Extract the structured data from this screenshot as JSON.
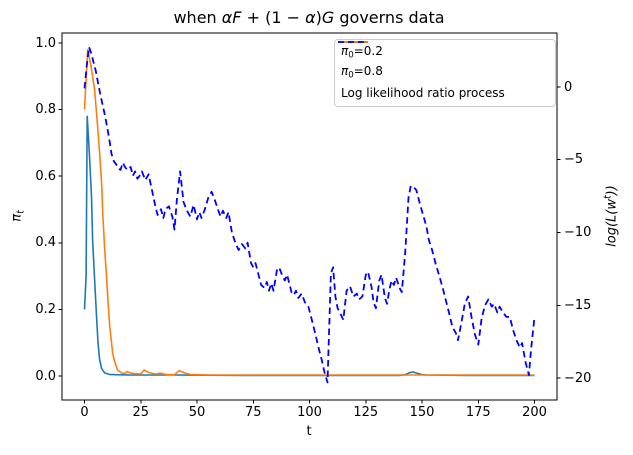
{
  "figure": {
    "title_parts": [
      {
        "text": "when ",
        "style": ""
      },
      {
        "text": "αF",
        "style": "i"
      },
      {
        "text": " + (1 − ",
        "style": ""
      },
      {
        "text": "α",
        "style": "i"
      },
      {
        "text": ")",
        "style": ""
      },
      {
        "text": "G",
        "style": "i"
      },
      {
        "text": " governs data",
        "style": ""
      }
    ],
    "xlabel": "t",
    "ylabel_left_parts": [
      {
        "text": "π",
        "style": "i"
      },
      {
        "text": "t",
        "style": "isub"
      }
    ],
    "ylabel_right_parts": [
      {
        "text": "log(L(w",
        "style": "i"
      },
      {
        "text": "t",
        "style": "isup"
      },
      {
        "text": "))",
        "style": "i"
      }
    ]
  },
  "chart_data": {
    "type": "line",
    "title": "when αF + (1 − α)G governs data",
    "xlabel": "t",
    "ylabel_left": "π_t",
    "ylabel_right": "log(L(w^t))",
    "grid": false,
    "xlim": [
      -10,
      210
    ],
    "ylim_left": [
      -0.072,
      1.03
    ],
    "ylim_right": [
      -21.51,
      3.71
    ],
    "xticks": {
      "values": [
        0,
        25,
        50,
        75,
        100,
        125,
        150,
        175,
        200
      ],
      "labels": [
        "0",
        "25",
        "50",
        "75",
        "100",
        "125",
        "150",
        "175",
        "200"
      ]
    },
    "yticks_left": {
      "values": [
        0.0,
        0.2,
        0.4,
        0.6,
        0.8,
        1.0
      ],
      "labels": [
        "0.0",
        "0.2",
        "0.4",
        "0.6",
        "0.8",
        "1.0"
      ]
    },
    "yticks_right": {
      "values": [
        0,
        -5,
        -10,
        -15,
        -20
      ],
      "labels": [
        "0",
        "−5",
        "−10",
        "−15",
        "−20"
      ]
    },
    "legend": {
      "position": "upper right",
      "entries": [
        {
          "label": "π₀=0.2",
          "label_parts": [
            {
              "text": "π",
              "style": "i"
            },
            {
              "text": "0",
              "style": "sub"
            },
            {
              "text": "=0.2",
              "style": ""
            }
          ],
          "color": "#1f77b4",
          "dash": false
        },
        {
          "label": "π₀=0.8",
          "label_parts": [
            {
              "text": "π",
              "style": "i"
            },
            {
              "text": "0",
              "style": "sub"
            },
            {
              "text": "=0.8",
              "style": ""
            }
          ],
          "color": "#ff7f0e",
          "dash": false
        },
        {
          "label": "Log likelihood ratio process",
          "label_parts": [
            {
              "text": "Log likelihood ratio process",
              "style": ""
            }
          ],
          "color": "#0000ff",
          "dash": true
        }
      ]
    },
    "series": [
      {
        "name": "pi0=0.2",
        "axis": "left",
        "color": "#1f77b4",
        "style": "solid",
        "width": 1.6,
        "points": [
          [
            0,
            0.2
          ],
          [
            0.7,
            0.3
          ],
          [
            1.2,
            0.78
          ],
          [
            2.2,
            0.66
          ],
          [
            3.1,
            0.54
          ],
          [
            3.6,
            0.41
          ],
          [
            4.5,
            0.29
          ],
          [
            5.4,
            0.17
          ],
          [
            6,
            0.1
          ],
          [
            6.7,
            0.05
          ],
          [
            7.6,
            0.022
          ],
          [
            9,
            0.009
          ],
          [
            11,
            0.005
          ],
          [
            14,
            0.004
          ],
          [
            20,
            0.003
          ],
          [
            40,
            0.003
          ],
          [
            70,
            0.002
          ],
          [
            100,
            0.002
          ],
          [
            140,
            0.002
          ],
          [
            142.5,
            0.004
          ],
          [
            144.5,
            0.01
          ],
          [
            146,
            0.012
          ],
          [
            148,
            0.008
          ],
          [
            150,
            0.004
          ],
          [
            152,
            0.003
          ],
          [
            170,
            0.002
          ],
          [
            200,
            0.002
          ]
        ]
      },
      {
        "name": "pi0=0.8",
        "axis": "left",
        "color": "#ff7f0e",
        "style": "solid",
        "width": 1.6,
        "points": [
          [
            0,
            0.8
          ],
          [
            1.4,
            0.98
          ],
          [
            2.9,
            0.93
          ],
          [
            4.5,
            0.86
          ],
          [
            5.8,
            0.75
          ],
          [
            6.7,
            0.67
          ],
          [
            7.6,
            0.58
          ],
          [
            8.2,
            0.48
          ],
          [
            8.9,
            0.39
          ],
          [
            9.8,
            0.3
          ],
          [
            10.5,
            0.22
          ],
          [
            11.2,
            0.15
          ],
          [
            12,
            0.1
          ],
          [
            12.5,
            0.07
          ],
          [
            13.4,
            0.042
          ],
          [
            14.7,
            0.018
          ],
          [
            16.5,
            0.009
          ],
          [
            17.9,
            0.008
          ],
          [
            19,
            0.014
          ],
          [
            20,
            0.01
          ],
          [
            21.5,
            0.008
          ],
          [
            23,
            0.007
          ],
          [
            25,
            0.006
          ],
          [
            26.5,
            0.018
          ],
          [
            28,
            0.012
          ],
          [
            30,
            0.008
          ],
          [
            32,
            0.006
          ],
          [
            33.5,
            0.009
          ],
          [
            35,
            0.006
          ],
          [
            37,
            0.004
          ],
          [
            40,
            0.004
          ],
          [
            42,
            0.016
          ],
          [
            43.5,
            0.012
          ],
          [
            45,
            0.008
          ],
          [
            47,
            0.005
          ],
          [
            50,
            0.004
          ],
          [
            55,
            0.003
          ],
          [
            60,
            0.003
          ],
          [
            80,
            0.003
          ],
          [
            100,
            0.003
          ],
          [
            130,
            0.003
          ],
          [
            160,
            0.003
          ],
          [
            200,
            0.003
          ]
        ]
      },
      {
        "name": "Log likelihood ratio process",
        "axis": "right",
        "color": "#0000ff",
        "style": "dashed",
        "width": 1.8,
        "points": [
          [
            0,
            -0.1
          ],
          [
            1,
            1.5
          ],
          [
            2,
            2.75
          ],
          [
            3,
            2.3
          ],
          [
            4,
            1.7
          ],
          [
            5,
            1.1
          ],
          [
            6,
            0.3
          ],
          [
            7,
            -0.5
          ],
          [
            8,
            -1.2
          ],
          [
            9,
            -1.9
          ],
          [
            10,
            -2.7
          ],
          [
            11,
            -3.6
          ],
          [
            12,
            -4.6
          ],
          [
            13,
            -5.1
          ],
          [
            14,
            -5.3
          ],
          [
            15,
            -5.6
          ],
          [
            16,
            -5.7
          ],
          [
            17,
            -5.2
          ],
          [
            18,
            -5.5
          ],
          [
            19,
            -5.7
          ],
          [
            20.5,
            -5.5
          ],
          [
            21.5,
            -6.1
          ],
          [
            22.5,
            -5.8
          ],
          [
            23.5,
            -6.3
          ],
          [
            24.5,
            -6.1
          ],
          [
            25.5,
            -5.8
          ],
          [
            27,
            -6.4
          ],
          [
            28.5,
            -6.0
          ],
          [
            30,
            -7.1
          ],
          [
            31.5,
            -8.2
          ],
          [
            32.5,
            -8.8
          ],
          [
            34,
            -8.4
          ],
          [
            35,
            -9.0
          ],
          [
            36,
            -8.4
          ],
          [
            37.5,
            -8.2
          ],
          [
            39,
            -8.9
          ],
          [
            40,
            -9.8
          ],
          [
            41,
            -7.8
          ],
          [
            42.5,
            -5.8
          ],
          [
            44,
            -7.9
          ],
          [
            45.5,
            -8.5
          ],
          [
            47,
            -8.9
          ],
          [
            48.5,
            -8.1
          ],
          [
            50,
            -9.1
          ],
          [
            51,
            -8.6
          ],
          [
            52,
            -9.0
          ],
          [
            53.5,
            -8.4
          ],
          [
            55,
            -7.6
          ],
          [
            56.5,
            -7.2
          ],
          [
            58,
            -7.8
          ],
          [
            59.5,
            -8.5
          ],
          [
            60.5,
            -8.9
          ],
          [
            61.5,
            -8.5
          ],
          [
            63,
            -9.0
          ],
          [
            64,
            -8.6
          ],
          [
            65.5,
            -10.0
          ],
          [
            67,
            -10.7
          ],
          [
            68.5,
            -11.2
          ],
          [
            70,
            -10.8
          ],
          [
            71.5,
            -11.1
          ],
          [
            72.5,
            -10.7
          ],
          [
            74,
            -12.1
          ],
          [
            75,
            -12.4
          ],
          [
            76,
            -12.1
          ],
          [
            77.5,
            -13.0
          ],
          [
            78.5,
            -13.6
          ],
          [
            80,
            -13.8
          ],
          [
            81,
            -13.4
          ],
          [
            82,
            -14.0
          ],
          [
            83,
            -13.5
          ],
          [
            84,
            -14.0
          ],
          [
            85.5,
            -12.6
          ],
          [
            86.5,
            -12.4
          ],
          [
            87.5,
            -12.8
          ],
          [
            89,
            -13.3
          ],
          [
            90,
            -12.9
          ],
          [
            91,
            -13.5
          ],
          [
            92,
            -14.1
          ],
          [
            93,
            -14.3
          ],
          [
            94,
            -14.0
          ],
          [
            95,
            -14.5
          ],
          [
            96.5,
            -14.2
          ],
          [
            98,
            -14.8
          ],
          [
            99.5,
            -15.1
          ],
          [
            101,
            -16.0
          ],
          [
            102.5,
            -16.9
          ],
          [
            104,
            -17.9
          ],
          [
            105.5,
            -18.8
          ],
          [
            106.5,
            -19.5
          ],
          [
            108,
            -20.3
          ],
          [
            109.5,
            -12.8
          ],
          [
            110.5,
            -12.4
          ],
          [
            111.5,
            -14.4
          ],
          [
            112.5,
            -15.2
          ],
          [
            113.5,
            -15.5
          ],
          [
            115,
            -16.0
          ],
          [
            116.5,
            -14.0
          ],
          [
            118,
            -13.7
          ],
          [
            119.5,
            -14.4
          ],
          [
            121,
            -14.2
          ],
          [
            122,
            -14.6
          ],
          [
            123.5,
            -14.4
          ],
          [
            125,
            -12.9
          ],
          [
            126,
            -12.7
          ],
          [
            127.5,
            -13.7
          ],
          [
            128.5,
            -14.8
          ],
          [
            129.5,
            -15.2
          ],
          [
            131,
            -13.3
          ],
          [
            132,
            -12.9
          ],
          [
            133.5,
            -14.5
          ],
          [
            134.5,
            -14.9
          ],
          [
            135.5,
            -13.9
          ],
          [
            136.5,
            -13.3
          ],
          [
            137.5,
            -13.6
          ],
          [
            138.5,
            -13.1
          ],
          [
            140,
            -13.8
          ],
          [
            141,
            -14.1
          ],
          [
            142.5,
            -11.5
          ],
          [
            144,
            -7.6
          ],
          [
            145,
            -6.8
          ],
          [
            146.5,
            -6.9
          ],
          [
            147.5,
            -7.1
          ],
          [
            149,
            -8.0
          ],
          [
            150.5,
            -8.8
          ],
          [
            152,
            -9.6
          ],
          [
            153,
            -10.5
          ],
          [
            154.5,
            -11.2
          ],
          [
            156,
            -12.1
          ],
          [
            157.5,
            -12.9
          ],
          [
            159,
            -13.7
          ],
          [
            160.5,
            -14.6
          ],
          [
            162,
            -15.5
          ],
          [
            163.5,
            -16.5
          ],
          [
            165,
            -16.9
          ],
          [
            166,
            -17.4
          ],
          [
            167.5,
            -16.2
          ],
          [
            169,
            -14.9
          ],
          [
            170.5,
            -14.4
          ],
          [
            172,
            -15.8
          ],
          [
            173.5,
            -17.0
          ],
          [
            175,
            -17.7
          ],
          [
            176.5,
            -15.9
          ],
          [
            178,
            -15.0
          ],
          [
            179.5,
            -14.6
          ],
          [
            181,
            -15.1
          ],
          [
            182,
            -14.9
          ],
          [
            183.5,
            -15.5
          ],
          [
            184.5,
            -15.1
          ],
          [
            186,
            -15.5
          ],
          [
            187.5,
            -15.8
          ],
          [
            189,
            -15.8
          ],
          [
            190.5,
            -16.7
          ],
          [
            192,
            -17.4
          ],
          [
            193.5,
            -17.9
          ],
          [
            194.5,
            -17.6
          ],
          [
            196,
            -18.9
          ],
          [
            197.5,
            -19.8
          ],
          [
            198.5,
            -18.0
          ],
          [
            200,
            -15.8
          ]
        ]
      }
    ]
  }
}
